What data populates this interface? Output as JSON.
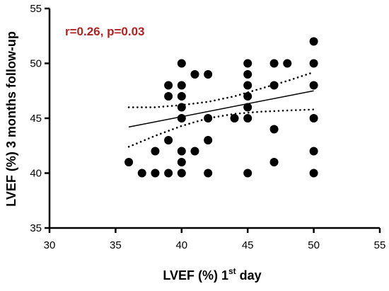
{
  "chart_data": {
    "type": "scatter",
    "title": "",
    "annotation": "r=0.26, p=0.03",
    "xlabel": {
      "main": "LVEF (%) 1",
      "sup": "st",
      "rest": " day"
    },
    "ylabel": "LVEF (%) 3 months follow-up",
    "xlim": [
      30,
      55
    ],
    "ylim": [
      35,
      55
    ],
    "xticks": [
      30,
      35,
      40,
      45,
      50,
      55
    ],
    "yticks": [
      35,
      40,
      45,
      50,
      55
    ],
    "grid": false,
    "points": [
      [
        36,
        41
      ],
      [
        37,
        40
      ],
      [
        38,
        40
      ],
      [
        38,
        42
      ],
      [
        39,
        40
      ],
      [
        39,
        43
      ],
      [
        39,
        47
      ],
      [
        39,
        48
      ],
      [
        40,
        40
      ],
      [
        40,
        41
      ],
      [
        40,
        42
      ],
      [
        40,
        45
      ],
      [
        40,
        46
      ],
      [
        40,
        47
      ],
      [
        40,
        48
      ],
      [
        40,
        50
      ],
      [
        41,
        42
      ],
      [
        41,
        49
      ],
      [
        42,
        40
      ],
      [
        42,
        43
      ],
      [
        42,
        45
      ],
      [
        42,
        49
      ],
      [
        44,
        45
      ],
      [
        45,
        40
      ],
      [
        45,
        45
      ],
      [
        45,
        46
      ],
      [
        45,
        47
      ],
      [
        45,
        48
      ],
      [
        45,
        49
      ],
      [
        45,
        50
      ],
      [
        47,
        41
      ],
      [
        47,
        44
      ],
      [
        47,
        48
      ],
      [
        47,
        50
      ],
      [
        48,
        50
      ],
      [
        50,
        40
      ],
      [
        50,
        42
      ],
      [
        50,
        45
      ],
      [
        50,
        48
      ],
      [
        50,
        50
      ],
      [
        50,
        52
      ]
    ],
    "regression": {
      "x": [
        36,
        50
      ],
      "y": [
        44.2,
        47.5
      ]
    },
    "ci_upper": {
      "x": [
        36,
        38,
        40,
        42,
        44,
        46,
        48,
        50
      ],
      "y": [
        46.0,
        46.0,
        46.2,
        46.5,
        47.0,
        47.7,
        48.4,
        49.2
      ]
    },
    "ci_lower": {
      "x": [
        36,
        38,
        40,
        42,
        44,
        46,
        48,
        50
      ],
      "y": [
        42.4,
        43.4,
        44.3,
        45.0,
        45.4,
        45.6,
        45.7,
        45.8
      ]
    },
    "colors": {
      "annotation": "#b22222",
      "points": "#000000",
      "lines": "#000000"
    }
  }
}
